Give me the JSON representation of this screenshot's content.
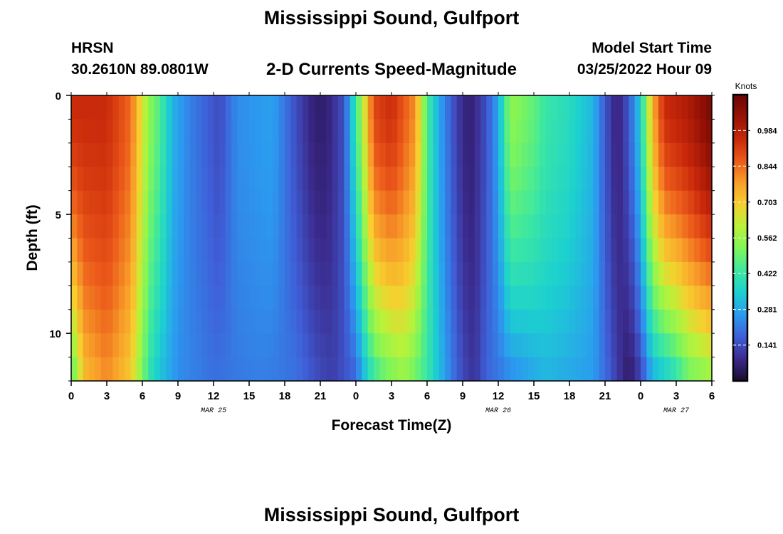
{
  "header": {
    "title": "Mississippi Sound, Gulfport",
    "station": "HRSN",
    "coordinates": "30.2610N  89.0801W",
    "subtitle": "2-D Currents Speed-Magnitude",
    "model_start_label": "Model Start Time",
    "model_start_time": "03/25/2022 Hour 09"
  },
  "footer": {
    "title": "Mississippi Sound, Gulfport"
  },
  "colors": {
    "colormap": [
      "#1a0a2e",
      "#3b2a8c",
      "#3f5fd8",
      "#2b9bf0",
      "#1cd0d0",
      "#3ee8a0",
      "#7ef55a",
      "#b8f23a",
      "#f6d02e",
      "#f8a02a",
      "#ec5a1a",
      "#c8280a",
      "#981205",
      "#6a0606"
    ]
  },
  "chart_data": {
    "type": "heatmap",
    "title": "2-D Currents Speed-Magnitude",
    "xlabel": "Forecast Time(Z)",
    "ylabel": "Depth (ft)",
    "x_range_hours": [
      0,
      54
    ],
    "y_range_ft": [
      0,
      12
    ],
    "x_tick_labels": [
      "0",
      "3",
      "6",
      "9",
      "12",
      "15",
      "18",
      "21",
      "0",
      "3",
      "6",
      "9",
      "12",
      "15",
      "18",
      "21",
      "0",
      "3",
      "6"
    ],
    "y_tick_labels": [
      "0",
      "5",
      "10"
    ],
    "date_labels": [
      {
        "text": "MAR 25",
        "hour": 12
      },
      {
        "text": "MAR 26",
        "hour": 36
      },
      {
        "text": "MAR 27",
        "hour": 51
      }
    ],
    "colorbar": {
      "units": "Knots",
      "range": [
        0.0,
        1.125
      ],
      "tick_values": [
        "0.984",
        "0.844",
        "0.703",
        "0.562",
        "0.422",
        "0.281",
        "0.141"
      ]
    },
    "speed_profile_surface": {
      "hours": [
        0,
        3,
        5,
        6.5,
        7.5,
        8.5,
        10,
        12.5,
        14,
        17,
        19,
        20.5,
        21.5,
        23,
        24,
        25.5,
        27,
        29,
        30,
        31,
        32,
        33,
        33.6,
        34,
        35,
        36,
        37,
        39,
        40,
        42,
        44,
        45,
        46,
        47,
        48,
        49,
        50,
        52,
        54
      ],
      "knots": [
        0.95,
        0.95,
        0.85,
        0.55,
        0.45,
        0.3,
        0.22,
        0.14,
        0.24,
        0.27,
        0.14,
        0.06,
        0.06,
        0.15,
        0.42,
        0.9,
        0.95,
        0.8,
        0.45,
        0.28,
        0.17,
        0.08,
        0.06,
        0.08,
        0.15,
        0.28,
        0.55,
        0.48,
        0.42,
        0.38,
        0.3,
        0.16,
        0.06,
        0.16,
        0.35,
        0.75,
        0.95,
        1.0,
        1.1
      ]
    },
    "speed_profile_bottom": {
      "hours": [
        0,
        0.5,
        1,
        3,
        5,
        6.5,
        7,
        9,
        12,
        16,
        19,
        21,
        22,
        24,
        25,
        26,
        28,
        30,
        31,
        32,
        33,
        34,
        35,
        40,
        44,
        45.5,
        47,
        48,
        49,
        50,
        51,
        52,
        54
      ],
      "knots": [
        0.45,
        0.55,
        0.72,
        0.8,
        0.7,
        0.42,
        0.35,
        0.24,
        0.2,
        0.22,
        0.2,
        0.14,
        0.12,
        0.18,
        0.35,
        0.45,
        0.55,
        0.42,
        0.32,
        0.22,
        0.14,
        0.1,
        0.18,
        0.3,
        0.26,
        0.16,
        0.04,
        0.12,
        0.28,
        0.32,
        0.38,
        0.48,
        0.55
      ]
    }
  }
}
